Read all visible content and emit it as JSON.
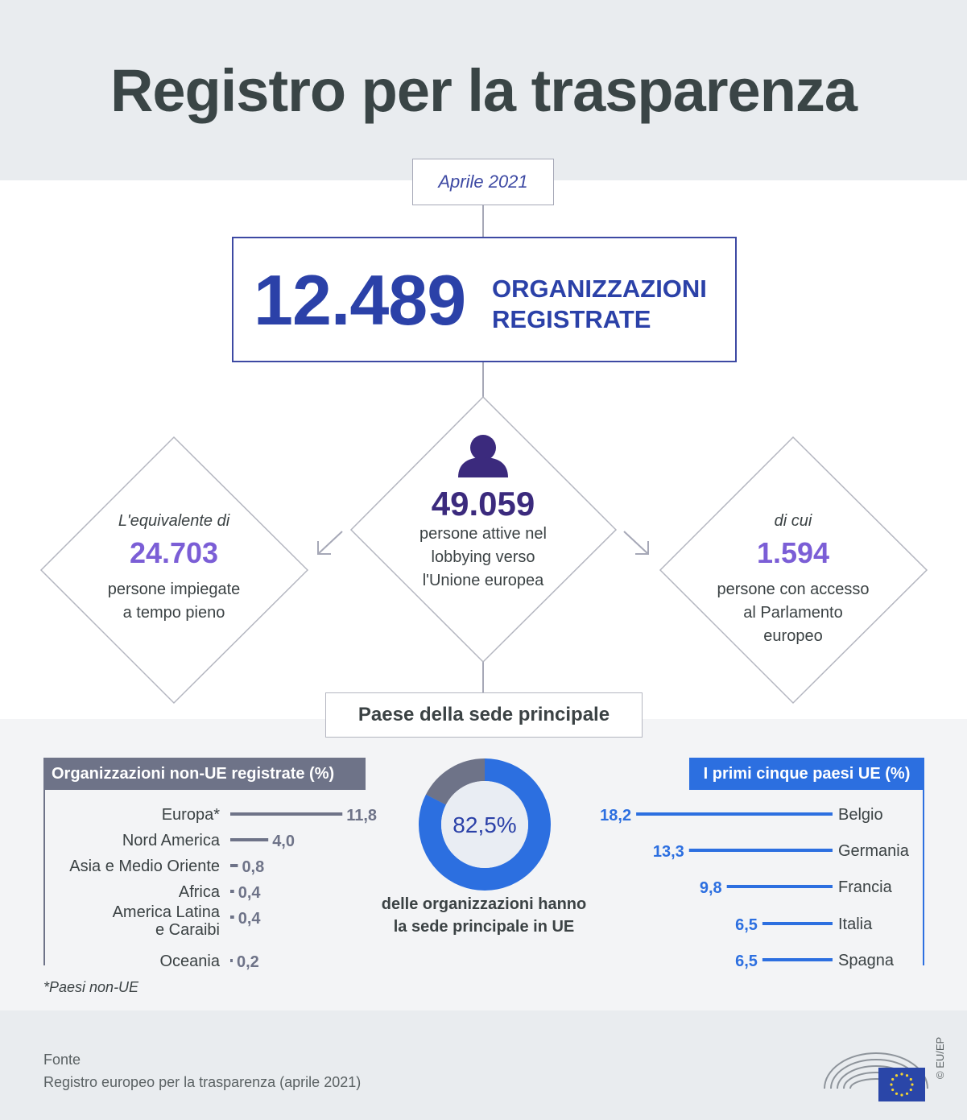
{
  "title": "Registro per la trasparenza",
  "date": "Aprile 2021",
  "total": {
    "number": "12.489",
    "label_line1": "ORGANIZZAZIONI",
    "label_line2": "REGISTRATE"
  },
  "center_stat": {
    "number": "49.059",
    "desc_line1": "persone attive nel",
    "desc_line2": "lobbying verso",
    "desc_line3": "l'Unione europea"
  },
  "left_stat": {
    "intro": "L'equivalente di",
    "number": "24.703",
    "desc_line1": "persone impiegate",
    "desc_line2": "a tempo pieno"
  },
  "right_stat": {
    "intro": "di cui",
    "number": "1.594",
    "desc_line1": "persone con accesso",
    "desc_line2": "al Parlamento",
    "desc_line3": "europeo"
  },
  "section_title": "Paese della sede principale",
  "donut_caption_line1": "delle organizzazioni hanno",
  "donut_caption_line2": "la sede principale in UE",
  "footnote": "*Paesi non-UE",
  "source_label": "Fonte",
  "source_text": "Registro europeo per la trasparenza (aprile 2021)",
  "copyright": "© EU/EP",
  "colors": {
    "accent_blue": "#2b41a8",
    "eu_blue": "#2c6fe0",
    "non_eu_grey": "#6e7388",
    "purple": "#7b5ed6"
  },
  "chart_data": [
    {
      "type": "bar",
      "title": "Organizzazioni non-UE registrate (%)",
      "categories": [
        "Europa*",
        "Nord America",
        "Asia e Medio Oriente",
        "Africa",
        "America Latina e Caraibi",
        "Oceania"
      ],
      "category_lines": [
        [
          "Europa*"
        ],
        [
          "Nord America"
        ],
        [
          "Asia e Medio Oriente"
        ],
        [
          "Africa"
        ],
        [
          "America Latina",
          "e Caraibi"
        ],
        [
          "Oceania"
        ]
      ],
      "values": [
        11.8,
        4.0,
        0.8,
        0.4,
        0.4,
        0.2
      ],
      "value_labels": [
        "11,8",
        "4,0",
        "0,8",
        "0,4",
        "0,4",
        "0,2"
      ],
      "orientation": "horizontal"
    },
    {
      "type": "pie",
      "title": "",
      "values": [
        82.5,
        17.5
      ],
      "center_label": "82,5%"
    },
    {
      "type": "bar",
      "title": "I primi cinque paesi UE (%)",
      "categories": [
        "Belgio",
        "Germania",
        "Francia",
        "Italia",
        "Spagna"
      ],
      "values": [
        18.2,
        13.3,
        9.8,
        6.5,
        6.5
      ],
      "value_labels": [
        "18,2",
        "13,3",
        "9,8",
        "6,5",
        "6,5"
      ],
      "orientation": "horizontal"
    }
  ]
}
